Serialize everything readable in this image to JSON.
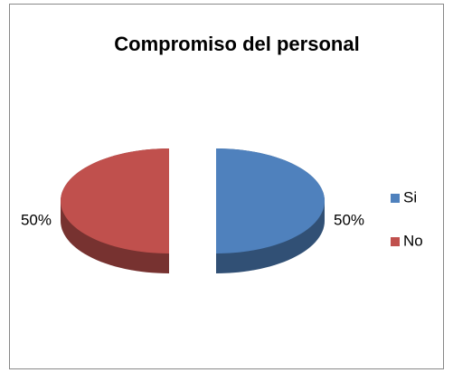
{
  "chart_data": {
    "type": "pie",
    "title": "Compromiso del personal",
    "categories": [
      "Si",
      "No"
    ],
    "values": [
      50,
      50
    ],
    "value_labels": [
      "50%",
      "50%"
    ],
    "colors": [
      "#4f81bd",
      "#c0504d"
    ],
    "legend": "right"
  }
}
